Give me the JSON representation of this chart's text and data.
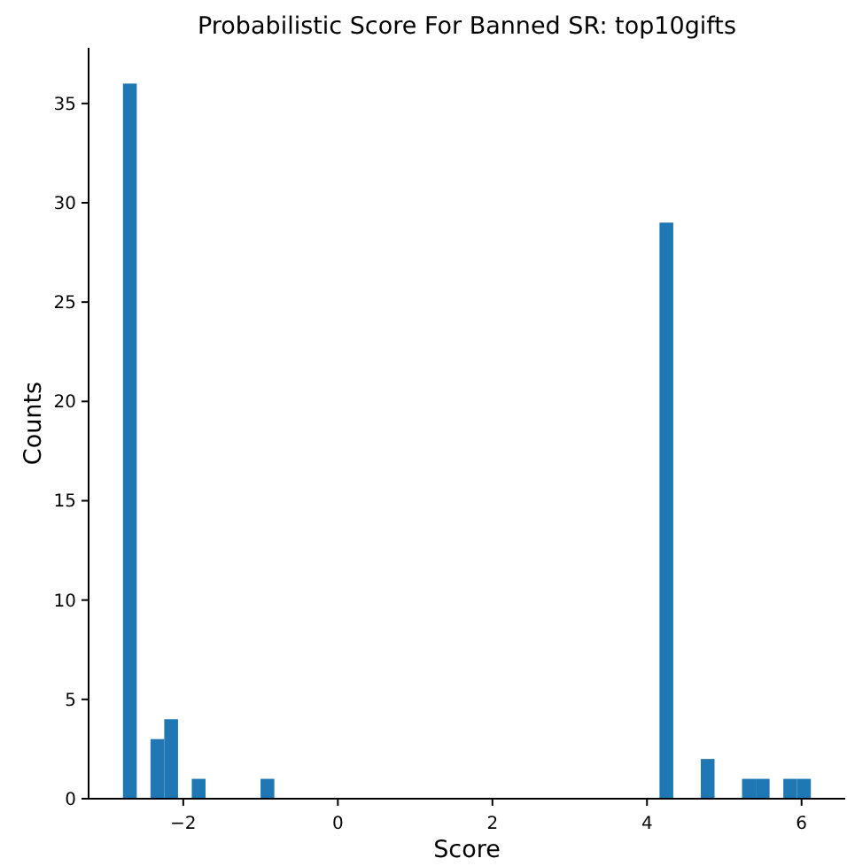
{
  "chart_data": {
    "type": "histogram",
    "title": "Probabilistic Score For Banned SR: top10gifts",
    "xlabel": "Score",
    "ylabel": "Counts",
    "bins": [
      -2.78,
      -2.602,
      -2.424,
      -2.246,
      -2.068,
      -1.89,
      -1.712,
      -1.534,
      -1.356,
      -1.178,
      -1.0,
      -0.822,
      -0.644,
      -0.466,
      -0.288,
      -0.11,
      0.068,
      0.246,
      0.424,
      0.602,
      0.78,
      0.958,
      1.136,
      1.314,
      1.492,
      1.67,
      1.848,
      2.026,
      2.204,
      2.382,
      2.56,
      2.738,
      2.916,
      3.094,
      3.272,
      3.45,
      3.628,
      3.806,
      3.984,
      4.162,
      4.34,
      4.518,
      4.696,
      4.874,
      5.052,
      5.23,
      5.408,
      5.586,
      5.764,
      5.942,
      6.12
    ],
    "values": [
      36,
      0,
      3,
      4,
      0,
      1,
      0,
      0,
      0,
      0,
      1,
      0,
      0,
      0,
      0,
      0,
      0,
      0,
      0,
      0,
      0,
      0,
      0,
      0,
      0,
      0,
      0,
      0,
      0,
      0,
      0,
      0,
      0,
      0,
      0,
      0,
      0,
      0,
      0,
      29,
      0,
      0,
      2,
      0,
      0,
      1,
      1,
      0,
      1,
      1
    ],
    "color": "#1f77b4",
    "xlim": [
      -3.225,
      6.565
    ],
    "ylim": [
      0,
      37.8
    ],
    "xticks": [
      {
        "value": -2,
        "label": "−2"
      },
      0,
      2,
      4,
      6
    ],
    "yticks": [
      0,
      5,
      10,
      15,
      20,
      25,
      30,
      35
    ],
    "grid": false
  }
}
